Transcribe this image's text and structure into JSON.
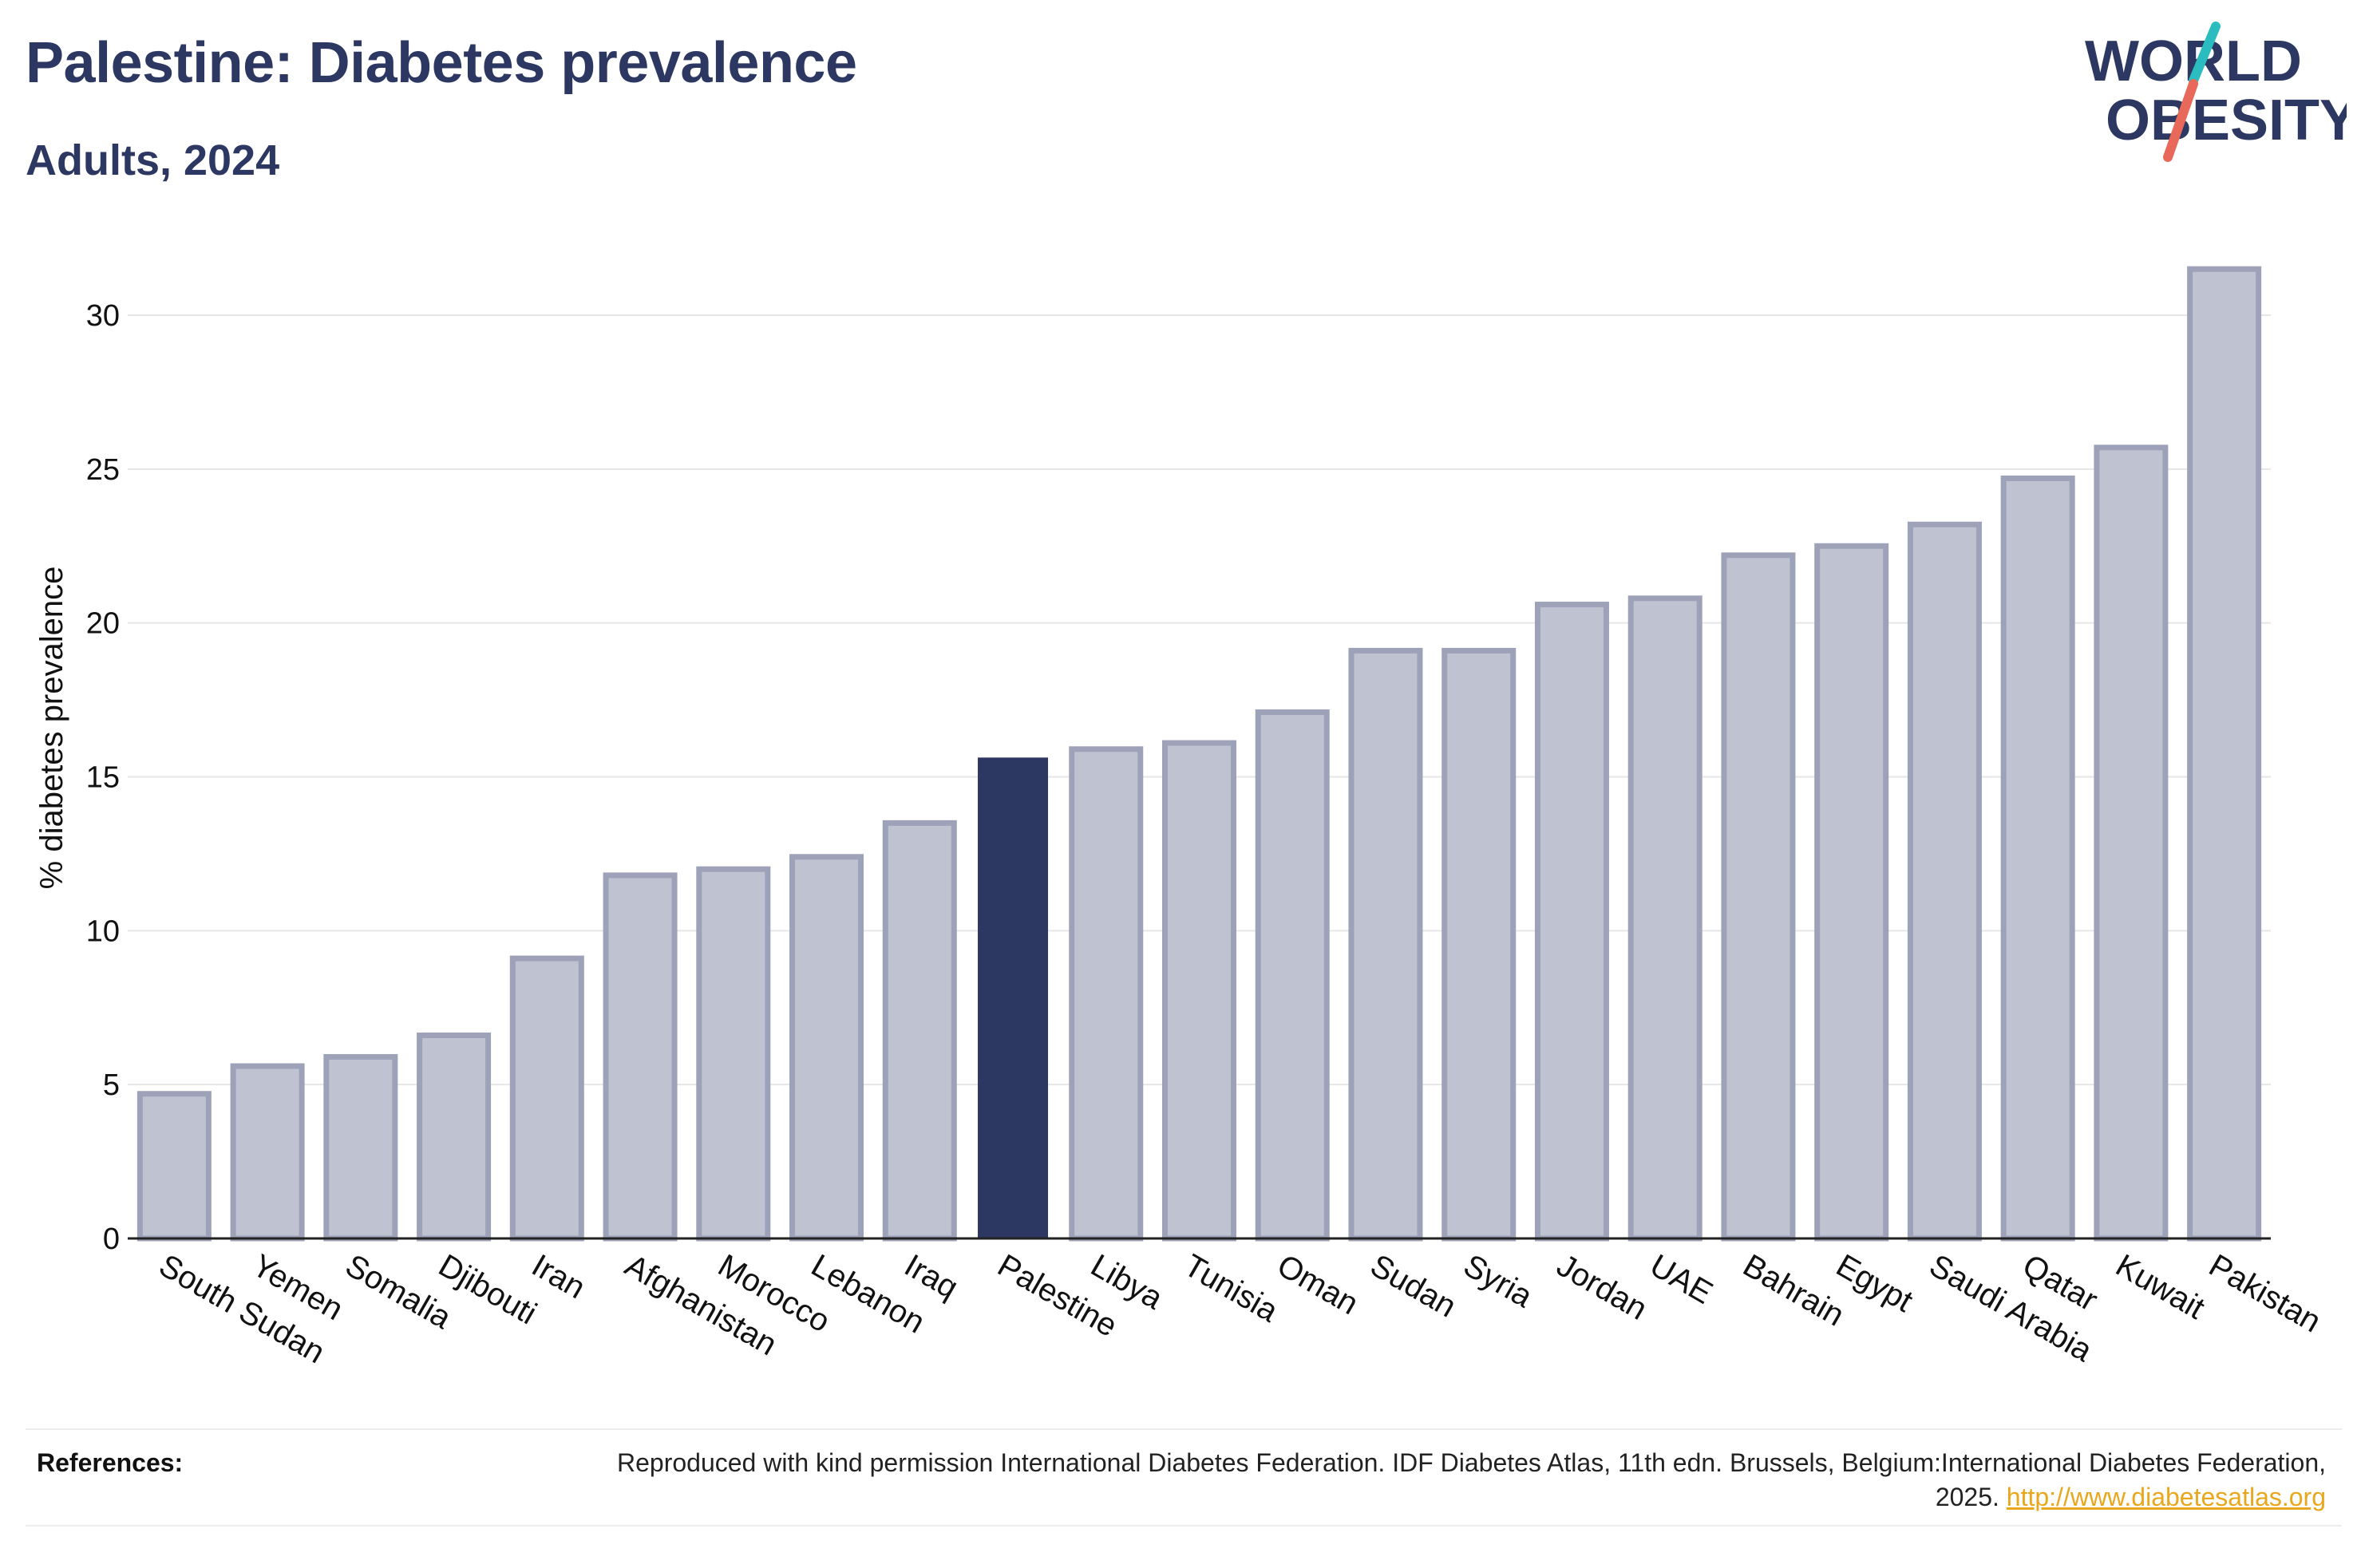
{
  "header": {
    "title": "Palestine: Diabetes prevalence",
    "subtitle": "Adults, 2024"
  },
  "logo": {
    "line1": "WORLD",
    "line2": "OBESITY",
    "colors": {
      "text": "#2c3762",
      "teal": "#2bbcc0",
      "coral": "#e8685a"
    }
  },
  "chart_data": {
    "type": "bar",
    "title": "Palestine: Diabetes prevalence",
    "subtitle": "Adults, 2024",
    "ylabel": "% diabetes prevalence",
    "xlabel": "",
    "ylim": [
      0,
      32
    ],
    "yticks": [
      0,
      5,
      10,
      15,
      20,
      25,
      30
    ],
    "grid": true,
    "highlight": "Palestine",
    "colors": {
      "highlight": "#2c3762",
      "default_fill": "#bfc2d0",
      "default_stroke": "#9da2b9",
      "grid": "#e6e6e6"
    },
    "categories": [
      "South Sudan",
      "Yemen",
      "Somalia",
      "Djibouti",
      "Iran",
      "Afghanistan",
      "Morocco",
      "Lebanon",
      "Iraq",
      "Palestine",
      "Libya",
      "Tunisia",
      "Oman",
      "Sudan",
      "Syria",
      "Jordan",
      "UAE",
      "Bahrain",
      "Egypt",
      "Saudi Arabia",
      "Qatar",
      "Kuwait",
      "Pakistan"
    ],
    "values": [
      4.7,
      5.6,
      5.9,
      6.6,
      9.1,
      11.8,
      12.0,
      12.4,
      13.5,
      15.6,
      15.9,
      16.1,
      17.1,
      19.1,
      19.1,
      20.6,
      20.8,
      22.2,
      22.5,
      23.2,
      24.7,
      25.7,
      31.5
    ]
  },
  "references": {
    "label": "References:",
    "text": "Reproduced with kind permission International Diabetes Federation. IDF Diabetes Atlas, 11th edn. Brussels, Belgium:International Diabetes Federation, 2025.",
    "link": "http://www.diabetesatlas.org"
  }
}
